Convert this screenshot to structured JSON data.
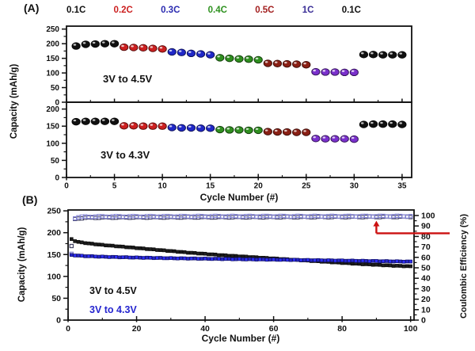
{
  "figure": {
    "panel_a": {
      "label": "(A)",
      "rate_labels": [
        {
          "text": "0.1C",
          "color": "#111111"
        },
        {
          "text": "0.2C",
          "color": "#cc2020"
        },
        {
          "text": "0.3C",
          "color": "#2a2ab0"
        },
        {
          "text": "0.4C",
          "color": "#2f9220"
        },
        {
          "text": "0.5C",
          "color": "#a32020"
        },
        {
          "text": "1C",
          "color": "#3a2e96"
        },
        {
          "text": "0.1C",
          "color": "#111111"
        }
      ],
      "x_label": "Cycle Number (#)",
      "y_label": "Capacity (mAh/g)",
      "top_annotation": "3V to 4.5V",
      "bottom_annotation": "3V to 4.3V"
    },
    "panel_b": {
      "label": "(B)",
      "x_label": "Cycle Number (#)",
      "y_label_left": "Capacity (mAh/g)",
      "y_label_right": "Coulombic Efficiency (%)",
      "legend": [
        {
          "text": "3V to 4.5V",
          "color": "#111111"
        },
        {
          "text": "3V to 4.3V",
          "color": "#2525cf"
        }
      ]
    }
  },
  "chart_data": [
    {
      "id": "A-top",
      "type": "scatter",
      "title": "3V to 4.5V",
      "xlabel": "Cycle Number (#)",
      "ylabel": "Capacity (mAh/g)",
      "xlim": [
        0,
        36
      ],
      "ylim": [
        0,
        260
      ],
      "xticks": [
        0,
        5,
        10,
        15,
        20,
        25,
        30,
        35
      ],
      "yticks": [
        0,
        50,
        100,
        150,
        200,
        250
      ],
      "marker": "glossy-circle",
      "series": [
        {
          "name": "0.1C",
          "color": "#111111",
          "x": [
            1,
            2,
            3,
            4,
            5
          ],
          "y": [
            192,
            198,
            199,
            200,
            200
          ]
        },
        {
          "name": "0.2C",
          "color": "#cc2020",
          "x": [
            6,
            7,
            8,
            9,
            10
          ],
          "y": [
            188,
            187,
            186,
            184,
            182
          ]
        },
        {
          "name": "0.3C",
          "color": "#2028c8",
          "x": [
            11,
            12,
            13,
            14,
            15
          ],
          "y": [
            172,
            170,
            167,
            165,
            162
          ]
        },
        {
          "name": "0.4C",
          "color": "#2f8f1f",
          "x": [
            16,
            17,
            18,
            19,
            20
          ],
          "y": [
            152,
            150,
            148,
            147,
            145
          ]
        },
        {
          "name": "0.5C",
          "color": "#8a2015",
          "x": [
            21,
            22,
            23,
            24,
            25
          ],
          "y": [
            133,
            132,
            131,
            130,
            128
          ]
        },
        {
          "name": "1C",
          "color": "#7a30cc",
          "x": [
            26,
            27,
            28,
            29,
            30
          ],
          "y": [
            104,
            103,
            103,
            102,
            102
          ]
        },
        {
          "name": "0.1C",
          "color": "#111111",
          "x": [
            31,
            32,
            33,
            34,
            35
          ],
          "y": [
            163,
            163,
            162,
            162,
            162
          ]
        }
      ]
    },
    {
      "id": "A-bottom",
      "type": "scatter",
      "title": "3V to 4.3V",
      "xlabel": "Cycle Number (#)",
      "ylabel": "Capacity (mAh/g)",
      "xlim": [
        0,
        36
      ],
      "ylim": [
        0,
        220
      ],
      "xticks": [
        0,
        5,
        10,
        15,
        20,
        25,
        30,
        35
      ],
      "yticks": [
        0,
        50,
        100,
        150,
        200
      ],
      "marker": "glossy-circle",
      "series": [
        {
          "name": "0.1C",
          "color": "#111111",
          "x": [
            1,
            2,
            3,
            4,
            5
          ],
          "y": [
            163,
            164,
            164,
            164,
            164
          ]
        },
        {
          "name": "0.2C",
          "color": "#cc2020",
          "x": [
            6,
            7,
            8,
            9,
            10
          ],
          "y": [
            151,
            151,
            150,
            150,
            150
          ]
        },
        {
          "name": "0.3C",
          "color": "#2028c8",
          "x": [
            11,
            12,
            13,
            14,
            15
          ],
          "y": [
            146,
            145,
            145,
            144,
            144
          ]
        },
        {
          "name": "0.4C",
          "color": "#2f8f1f",
          "x": [
            16,
            17,
            18,
            19,
            20
          ],
          "y": [
            140,
            139,
            139,
            138,
            138
          ]
        },
        {
          "name": "0.5C",
          "color": "#8a2015",
          "x": [
            21,
            22,
            23,
            24,
            25
          ],
          "y": [
            134,
            133,
            133,
            132,
            132
          ]
        },
        {
          "name": "1C",
          "color": "#7a30cc",
          "x": [
            26,
            27,
            28,
            29,
            30
          ],
          "y": [
            114,
            113,
            113,
            113,
            112
          ]
        },
        {
          "name": "0.1C",
          "color": "#111111",
          "x": [
            31,
            32,
            33,
            34,
            35
          ],
          "y": [
            155,
            156,
            156,
            156,
            155
          ]
        }
      ]
    },
    {
      "id": "B",
      "type": "scatter",
      "xlabel": "Cycle Number (#)",
      "ylabel_left": "Capacity (mAh/g)",
      "ylabel_right": "Coulombic Efficiency (%)",
      "xlim": [
        0,
        101
      ],
      "ylim_left": [
        0,
        252
      ],
      "ylim_right": [
        0,
        105.3
      ],
      "xticks": [
        0,
        20,
        40,
        60,
        80,
        100
      ],
      "yticks_left": [
        0,
        50,
        100,
        150,
        200,
        250
      ],
      "yticks_right": [
        0,
        10,
        20,
        30,
        40,
        50,
        60,
        70,
        80,
        90,
        100
      ],
      "series": [
        {
          "name": "Capacity 3V to 4.5V",
          "axis": "left",
          "marker": "filled-square",
          "color": "#1a1a1a",
          "anchors": [
            [
              1,
              185
            ],
            [
              2,
              181
            ],
            [
              3,
              179
            ],
            [
              4,
              177.5
            ],
            [
              5,
              176.5
            ],
            [
              7,
              174.5
            ],
            [
              10,
              172
            ],
            [
              15,
              168.5
            ],
            [
              20,
              165
            ],
            [
              25,
              161.5
            ],
            [
              30,
              158
            ],
            [
              35,
              154.5
            ],
            [
              40,
              151.5
            ],
            [
              45,
              148.5
            ],
            [
              50,
              146
            ],
            [
              55,
              143.5
            ],
            [
              60,
              141
            ],
            [
              65,
              138.5
            ],
            [
              70,
              136
            ],
            [
              75,
              133.5
            ],
            [
              80,
              131
            ],
            [
              85,
              128.5
            ],
            [
              90,
              126.5
            ],
            [
              95,
              124.5
            ],
            [
              100,
              123
            ]
          ]
        },
        {
          "name": "Capacity 3V to 4.3V",
          "axis": "left",
          "marker": "filled-square",
          "color": "#2525cf",
          "anchors": [
            [
              1,
              149
            ],
            [
              3,
              147.5
            ],
            [
              5,
              146.5
            ],
            [
              10,
              145
            ],
            [
              15,
              144
            ],
            [
              20,
              143
            ],
            [
              25,
              142.3
            ],
            [
              30,
              141.6
            ],
            [
              40,
              140.4
            ],
            [
              50,
              139.3
            ],
            [
              60,
              138.3
            ],
            [
              70,
              137.3
            ],
            [
              80,
              136.2
            ],
            [
              90,
              135
            ],
            [
              100,
              133.8
            ]
          ]
        },
        {
          "name": "Coulombic Efficiency 3V to 4.5V",
          "axis": "right",
          "marker": "open-square",
          "color": "#3b3b5e",
          "anchors": [
            [
              1,
              70.5
            ],
            [
              2,
              96.5
            ],
            [
              3,
              97.3
            ],
            [
              5,
              97.8
            ],
            [
              10,
              98.1
            ],
            [
              30,
              98.3
            ],
            [
              60,
              98.5
            ],
            [
              100,
              98.8
            ]
          ]
        },
        {
          "name": "Coulombic Efficiency 3V to 4.3V",
          "axis": "right",
          "marker": "open-square",
          "color": "#8585d6",
          "anchors": [
            [
              1,
              63.5
            ],
            [
              2,
              97.6
            ],
            [
              3,
              98.4
            ],
            [
              5,
              98.9
            ],
            [
              10,
              99.1
            ],
            [
              40,
              99.3
            ],
            [
              100,
              99.4
            ]
          ]
        }
      ],
      "annotation_arrow": {
        "color": "#cc1111",
        "at_cycle": 90,
        "line_efficiency": 83,
        "tip_efficiency": 95,
        "points_to": "right-axis"
      }
    }
  ]
}
